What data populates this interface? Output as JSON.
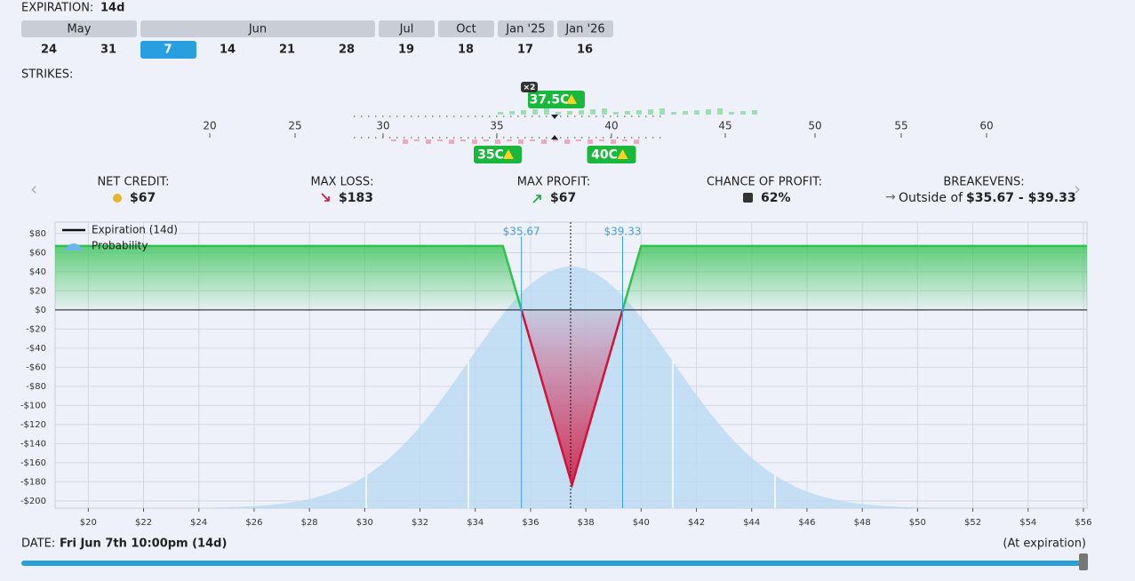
{
  "expiration": {
    "label": "EXPIRATION:",
    "value": "14d"
  },
  "months": [
    {
      "name": "May",
      "days": [
        "24",
        "31"
      ]
    },
    {
      "name": "Jun",
      "days": [
        "7",
        "14",
        "21",
        "28"
      ]
    },
    {
      "name": "Jul",
      "days": [
        "19"
      ]
    },
    {
      "name": "Oct",
      "days": [
        "18"
      ]
    },
    {
      "name": "Jan '25",
      "days": [
        "17"
      ]
    },
    {
      "name": "Jan '26",
      "days": [
        "16"
      ]
    }
  ],
  "strikes": {
    "label": "STRIKES:",
    "ticks": [
      "20",
      "25",
      "30",
      "35",
      "40",
      "45",
      "50",
      "55",
      "60"
    ],
    "legs": [
      {
        "label": "37.5C",
        "quantity": "×2"
      },
      {
        "label": "35C"
      },
      {
        "label": "40C"
      }
    ]
  },
  "stats": [
    {
      "label": "NET CREDIT:",
      "value": "$67"
    },
    {
      "label": "MAX LOSS:",
      "value": "$183"
    },
    {
      "label": "MAX PROFIT:",
      "value": "$67"
    },
    {
      "label": "CHANCE OF PROFIT:",
      "value": "62%"
    },
    {
      "label": "BREAKEVENS:",
      "prefix": "Outside of",
      "value": "$35.67 - $39.33"
    }
  ],
  "chart_data": {
    "type": "line",
    "xlim": [
      18.8,
      56.13
    ],
    "ylim": [
      -207.5,
      92
    ],
    "xticks": [
      {
        "value": 20,
        "label": "$20"
      },
      {
        "value": 22,
        "label": "$22"
      },
      {
        "value": 24,
        "label": "$24"
      },
      {
        "value": 26,
        "label": "$26"
      },
      {
        "value": 28,
        "label": "$28"
      },
      {
        "value": 30,
        "label": "$30"
      },
      {
        "value": 32,
        "label": "$32"
      },
      {
        "value": 34,
        "label": "$34"
      },
      {
        "value": 36,
        "label": "$36"
      },
      {
        "value": 38,
        "label": "$38"
      },
      {
        "value": 40,
        "label": "$40"
      },
      {
        "value": 42,
        "label": "$42"
      },
      {
        "value": 44,
        "label": "$44"
      },
      {
        "value": 46,
        "label": "$46"
      },
      {
        "value": 48,
        "label": "$48"
      },
      {
        "value": 50,
        "label": "$50"
      },
      {
        "value": 52,
        "label": "$52"
      },
      {
        "value": 54,
        "label": "$54"
      },
      {
        "value": 56,
        "label": "$56"
      }
    ],
    "yticks": [
      {
        "value": 80,
        "label": "$80"
      },
      {
        "value": 60,
        "label": "$60"
      },
      {
        "value": 40,
        "label": "$40"
      },
      {
        "value": 20,
        "label": "$20"
      },
      {
        "value": 0,
        "label": "$0"
      },
      {
        "value": -20,
        "label": "-$20"
      },
      {
        "value": -40,
        "label": "-$40"
      },
      {
        "value": -60,
        "label": "-$60"
      },
      {
        "value": -80,
        "label": "-$80"
      },
      {
        "value": -100,
        "label": "-$100"
      },
      {
        "value": -120,
        "label": "-$120"
      },
      {
        "value": -140,
        "label": "-$140"
      },
      {
        "value": -160,
        "label": "-$160"
      },
      {
        "value": -180,
        "label": "-$180"
      },
      {
        "value": -200,
        "label": "-$200"
      }
    ],
    "grid": true,
    "series": [
      {
        "name": "Expiration (14d)",
        "color": "#2fc24e",
        "loss_color": "#d3123c",
        "x": [
          18.8,
          35,
          37.5,
          40,
          56.13
        ],
        "values": [
          67,
          67,
          -183,
          67,
          67
        ]
      }
    ],
    "probability_label": "Probability",
    "breakevens": [
      {
        "value": 35.67,
        "label": "$35.67"
      },
      {
        "value": 39.33,
        "label": "$39.33"
      }
    ]
  },
  "date": {
    "label": "DATE:",
    "value": "Fri Jun 7th 10:00pm (14d)",
    "note": "(At expiration)"
  }
}
